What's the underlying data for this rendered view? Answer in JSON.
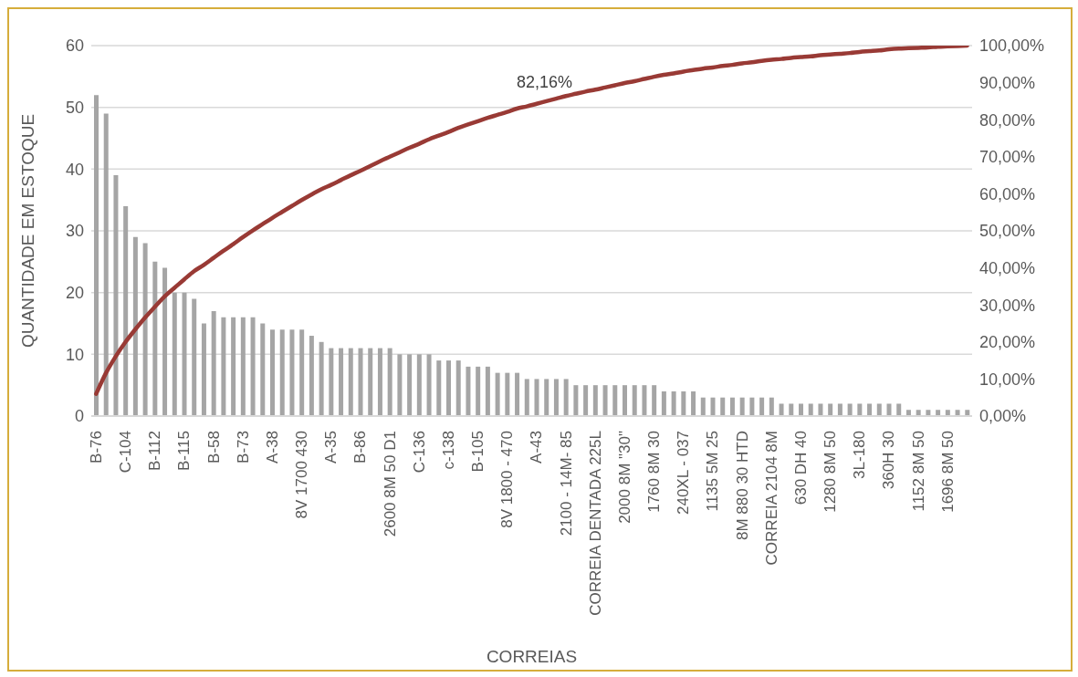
{
  "chart_data": {
    "type": "bar",
    "xlabel": "CORREIAS",
    "ylabel": "QUANTIDADE EM ESTOQUE",
    "categories": [
      "B-76",
      null,
      null,
      "C-104",
      null,
      null,
      "B-112",
      null,
      null,
      "B-115",
      null,
      null,
      "B-58",
      null,
      null,
      "B-73",
      null,
      null,
      "A-38",
      null,
      null,
      "8V 1700 430",
      null,
      null,
      "A-35",
      null,
      null,
      "B-86",
      null,
      null,
      "2600 8M 50 D1",
      null,
      null,
      "C-136",
      null,
      null,
      "c-138",
      null,
      null,
      "B-105",
      null,
      null,
      "8V 1800 - 470",
      null,
      null,
      "A-43",
      null,
      null,
      "2100 - 14M- 85",
      null,
      null,
      "CORREIA DENTADA 225L",
      null,
      null,
      "2000 8M \"30\"",
      null,
      null,
      "1760 8M 30",
      null,
      null,
      "240XL - 037",
      null,
      null,
      "1135 5M 25",
      null,
      null,
      "8M 880 30 HTD",
      null,
      null,
      "CORREIA 2104 8M",
      null,
      null,
      "630 DH  40",
      null,
      null,
      "1280  8M  50",
      null,
      null,
      "3L-180",
      null,
      null,
      "360H 30",
      null,
      null,
      "1152 8M 50",
      null,
      null,
      "1696 8M 50",
      null,
      null
    ],
    "series": [
      {
        "color": "#a5a5a5",
        "values": [
          52,
          49,
          39,
          34,
          29,
          28,
          25,
          24,
          20,
          20,
          19,
          15,
          17,
          16,
          16,
          16,
          16,
          15,
          14,
          14,
          14,
          14,
          13,
          12,
          11,
          11,
          11,
          11,
          11,
          11,
          11,
          10,
          10,
          10,
          10,
          9,
          9,
          9,
          8,
          8,
          8,
          7,
          7,
          7,
          6,
          6,
          6,
          6,
          6,
          5,
          5,
          5,
          5,
          5,
          5,
          5,
          5,
          5,
          4,
          4,
          4,
          4,
          3,
          3,
          3,
          3,
          3,
          3,
          3,
          3,
          2,
          2,
          2,
          2,
          2,
          2,
          2,
          2,
          2,
          2,
          2,
          2,
          2,
          1,
          1,
          1,
          1,
          1,
          1,
          1
        ]
      },
      {
        "type": "line",
        "axis": "y2",
        "color": "#993a35",
        "values": [
          6.0,
          11.6,
          16.1,
          20.0,
          23.4,
          26.6,
          29.5,
          32.3,
          34.6,
          36.9,
          39.1,
          40.8,
          42.7,
          44.6,
          46.4,
          48.3,
          50.1,
          51.8,
          53.5,
          55.1,
          56.7,
          58.3,
          59.8,
          61.2,
          62.4,
          63.7,
          65.0,
          66.2,
          67.5,
          68.8,
          70.0,
          71.2,
          72.4,
          73.5,
          74.7,
          75.7,
          76.7,
          77.8,
          78.7,
          79.6,
          80.5,
          81.3,
          82.1,
          83.0,
          83.6,
          84.3,
          85.0,
          85.7,
          86.4,
          87.0,
          87.6,
          88.1,
          88.7,
          89.3,
          89.9,
          90.4,
          91.0,
          91.6,
          92.1,
          92.5,
          93.0,
          93.4,
          93.8,
          94.1,
          94.5,
          94.8,
          95.2,
          95.5,
          95.9,
          96.2,
          96.4,
          96.7,
          96.9,
          97.1,
          97.4,
          97.6,
          97.8,
          98.0,
          98.3,
          98.5,
          98.7,
          99.0,
          99.2,
          99.3,
          99.4,
          99.5,
          99.7,
          99.8,
          99.9,
          100
        ]
      }
    ],
    "marker": "none",
    "ylim": [
      0,
      60
    ],
    "yticks": [
      0,
      10,
      20,
      30,
      40,
      50,
      60
    ],
    "y2lim": [
      0,
      100
    ],
    "y2ticks": [
      {
        "value": 0,
        "label": "0,00%"
      },
      {
        "value": 10,
        "label": "10,00%"
      },
      {
        "value": 20,
        "label": "20,00%"
      },
      {
        "value": 30,
        "label": "30,00%"
      },
      {
        "value": 40,
        "label": "40,00%"
      },
      {
        "value": 50,
        "label": "50,00%"
      },
      {
        "value": 60,
        "label": "60,00%"
      },
      {
        "value": 70,
        "label": "70,00%"
      },
      {
        "value": 80,
        "label": "80,00%"
      },
      {
        "value": 90,
        "label": "90,00%"
      },
      {
        "value": 100,
        "label": "100,00%"
      }
    ],
    "grid": "y",
    "annotations": [
      "82,16%"
    ]
  }
}
